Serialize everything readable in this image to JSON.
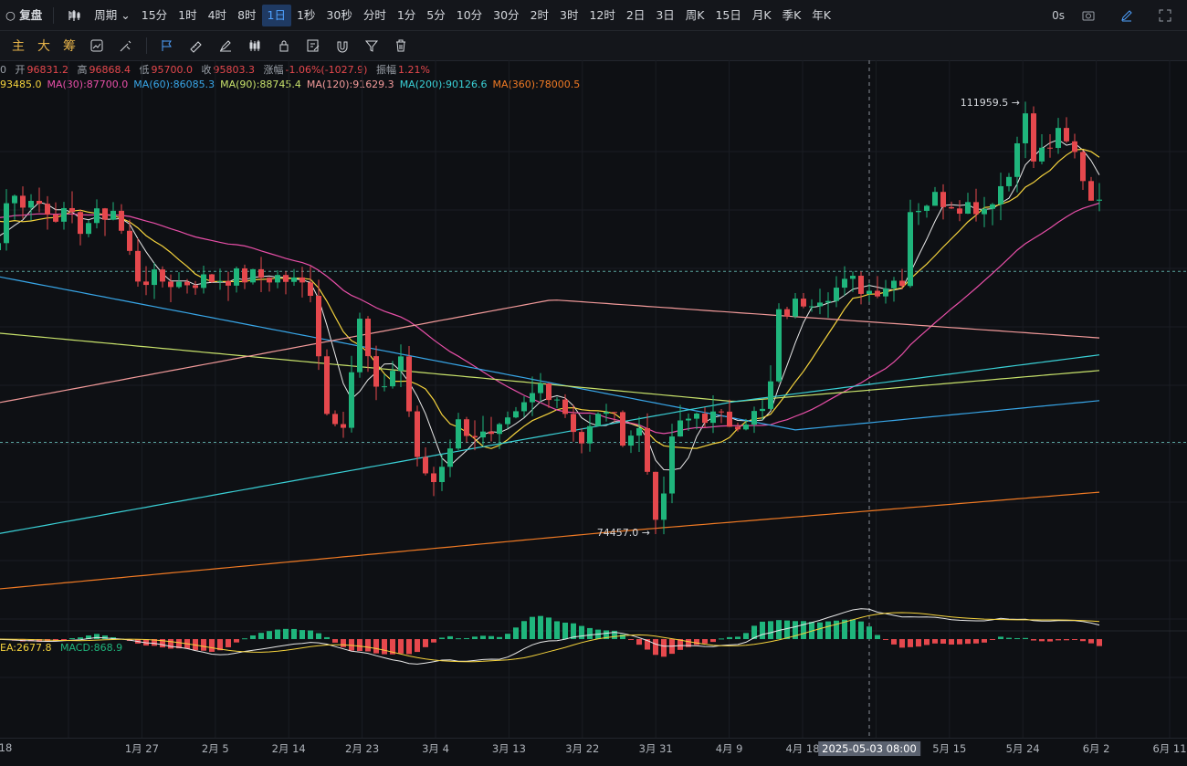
{
  "toolbar": {
    "left_fragment": "○ 复盘",
    "period_label": "周期",
    "intervals": [
      "15分",
      "1时",
      "4时",
      "8时",
      "1日",
      "1秒",
      "30秒",
      "分时",
      "1分",
      "5分",
      "10分",
      "30分",
      "2时",
      "3时",
      "12时",
      "2日",
      "3日",
      "周K",
      "15日",
      "月K",
      "季K",
      "年K"
    ],
    "active_interval": "1日",
    "countdown": "0s"
  },
  "toolbar2": {
    "items": [
      "主",
      "大",
      "筹"
    ]
  },
  "ohlc": {
    "prefix": "0",
    "open_label": "开",
    "open": "96831.2",
    "high_label": "高",
    "high": "96868.4",
    "low_label": "低",
    "low": "95700.0",
    "close_label": "收",
    "close": "95803.3",
    "change_label": "涨幅",
    "change": "-1.06%(-1027.9)",
    "amp_label": "振幅",
    "amp": "1.21%"
  },
  "ma_legend": [
    {
      "text": "93485.0",
      "color": "#f5d33d"
    },
    {
      "text": "MA(30):87700.0",
      "color": "#e84fa8"
    },
    {
      "text": "MA(60):86085.3",
      "color": "#38a6e8"
    },
    {
      "text": "MA(90):88745.4",
      "color": "#c8e26b"
    },
    {
      "text": "MA(120):91629.3",
      "color": "#f29a9a"
    },
    {
      "text": "MA(200):90126.6",
      "color": "#3ad0d6"
    },
    {
      "text": "MA(360):78000.5",
      "color": "#f07a24"
    }
  ],
  "macd_legend": {
    "dea": "EA:2677.8",
    "macd": "MACD:868.9",
    "dea_color": "#f5d33d",
    "macd_color": "#1fb57c"
  },
  "annotations": {
    "high": "111959.5 →",
    "low": "74457.0 →"
  },
  "x_labels": [
    "18",
    "1月 27",
    "2月 5",
    "2月 14",
    "2月 23",
    "3月 4",
    "3月 13",
    "3月 22",
    "3月 31",
    "4月 9",
    "4月 18",
    "4月",
    "5月 15",
    "5月 24",
    "6月 2",
    "6月 11"
  ],
  "crosshair_label": "2025-05-03 08:00",
  "colors": {
    "up": "#1fb57c",
    "down": "#e5484d",
    "accent": "#4ea1ff",
    "bg": "#0e1014"
  },
  "chart_data": {
    "type": "candlestick",
    "title": "",
    "x_axis": "date (daily)",
    "y_range": [
      70000,
      115000
    ],
    "grid": true,
    "price_levels_dashed": [
      97500,
      82400
    ],
    "crosshair_date": "2025-05-03",
    "high_point": {
      "date": "2025-05-22",
      "value": 111959.5
    },
    "low_point": {
      "date": "2025-04-07",
      "value": 74457.0
    },
    "ohlc_anchor": [
      [
        "2025-01-18",
        104000
      ],
      [
        "2025-01-22",
        103500
      ],
      [
        "2025-01-27",
        101500
      ],
      [
        "2025-01-31",
        103000
      ],
      [
        "2025-02-03",
        97000
      ],
      [
        "2025-02-08",
        96500
      ],
      [
        "2025-02-14",
        97000
      ],
      [
        "2025-02-20",
        97000
      ],
      [
        "2025-02-24",
        96000
      ],
      [
        "2025-02-26",
        85000
      ],
      [
        "2025-02-28",
        84500
      ],
      [
        "2025-03-02",
        93000
      ],
      [
        "2025-03-04",
        86500
      ],
      [
        "2025-03-07",
        90000
      ],
      [
        "2025-03-09",
        80500
      ],
      [
        "2025-03-11",
        79000
      ],
      [
        "2025-03-14",
        84000
      ],
      [
        "2025-03-18",
        82500
      ],
      [
        "2025-03-21",
        84500
      ],
      [
        "2025-03-24",
        87500
      ],
      [
        "2025-03-26",
        86500
      ],
      [
        "2025-03-29",
        82500
      ],
      [
        "2025-04-01",
        85500
      ],
      [
        "2025-04-03",
        83000
      ],
      [
        "2025-04-05",
        83500
      ],
      [
        "2025-04-07",
        76300
      ],
      [
        "2025-04-08",
        77000
      ],
      [
        "2025-04-09",
        83000
      ],
      [
        "2025-04-12",
        85000
      ],
      [
        "2025-04-16",
        84200
      ],
      [
        "2025-04-20",
        85000
      ],
      [
        "2025-04-21",
        87500
      ],
      [
        "2025-04-22",
        93500
      ],
      [
        "2025-04-25",
        95000
      ],
      [
        "2025-05-01",
        96500
      ],
      [
        "2025-05-03",
        95800
      ],
      [
        "2025-05-07",
        97000
      ],
      [
        "2025-05-08",
        103000
      ],
      [
        "2025-05-11",
        104000
      ],
      [
        "2025-05-14",
        103500
      ],
      [
        "2025-05-17",
        103200
      ],
      [
        "2025-05-20",
        106000
      ],
      [
        "2025-05-21",
        109700
      ],
      [
        "2025-05-22",
        111000
      ],
      [
        "2025-05-23",
        107300
      ],
      [
        "2025-05-26",
        109400
      ],
      [
        "2025-05-28",
        107800
      ],
      [
        "2025-05-30",
        104000
      ],
      [
        "2025-05-31",
        104600
      ]
    ],
    "moving_averages": [
      {
        "name": "MA(?)",
        "value": 93485.0,
        "color": "#f5d33d"
      },
      {
        "name": "MA(30)",
        "value": 87700.0,
        "color": "#e84fa8"
      },
      {
        "name": "MA(60)",
        "value": 86085.3,
        "color": "#38a6e8"
      },
      {
        "name": "MA(90)",
        "value": 88745.4,
        "color": "#c8e26b"
      },
      {
        "name": "MA(120)",
        "value": 91629.3,
        "color": "#f29a9a"
      },
      {
        "name": "MA(200)",
        "value": 90126.6,
        "color": "#3ad0d6"
      },
      {
        "name": "MA(360)",
        "value": 78000.5,
        "color": "#f07a24"
      }
    ],
    "last_bar": {
      "open": 96831.2,
      "high": 96868.4,
      "low": 95700.0,
      "close": 95803.3,
      "change": "-1.06%",
      "amplitude": "1.21%"
    },
    "macd": {
      "dea": 2677.8,
      "macd": 868.9
    }
  }
}
